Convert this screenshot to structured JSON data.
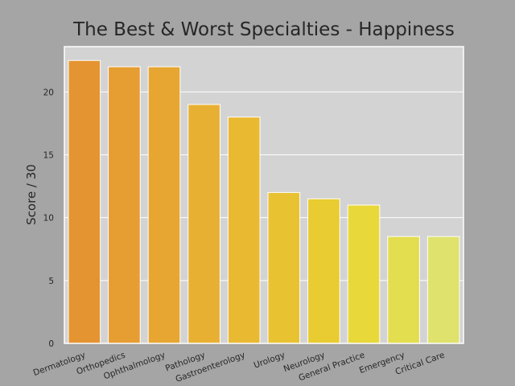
{
  "chart_data": {
    "type": "bar",
    "title": "The Best & Worst Specialties - Happiness",
    "xlabel": "",
    "ylabel": "Score / 30",
    "categories": [
      "Dermatology",
      "Orthopedics",
      "Ophthalmology",
      "Pathology",
      "Gastroenterology",
      "Urology",
      "Neurology",
      "General Practice",
      "Emergency",
      "Critical Care"
    ],
    "values": [
      22.5,
      22,
      22,
      19,
      18,
      12,
      11.5,
      11,
      8.5,
      8.5
    ],
    "colors": [
      "#e59432",
      "#e69d32",
      "#e7a632",
      "#e8b032",
      "#e9b932",
      "#e9c232",
      "#e9cb32",
      "#e8d83a",
      "#e3dd50",
      "#dfe26c"
    ],
    "ylim": [
      0,
      23.6
    ],
    "yticks": [
      0,
      5,
      10,
      15,
      20
    ],
    "grid": true,
    "plot_background": "#d3d3d3",
    "figure_background": "#a5a5a5"
  }
}
